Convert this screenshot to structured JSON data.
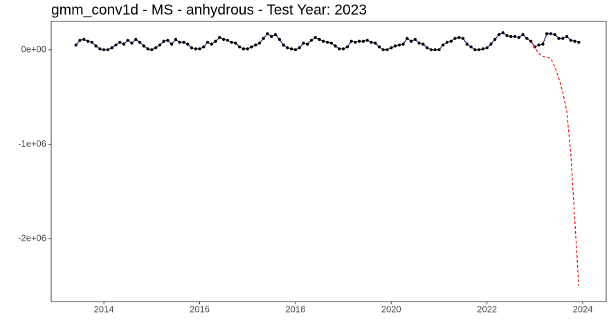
{
  "chart_data": {
    "type": "line",
    "title": "gmm_conv1d - MS - anhydrous - Test Year: 2023",
    "xlim": [
      2012.9,
      2024.49
    ],
    "ylim": [
      -2667000,
      300000
    ],
    "xticks": [
      2014,
      2016,
      2018,
      2020,
      2022,
      2024
    ],
    "yticks": [
      {
        "value": 0,
        "label": "0e+00"
      },
      {
        "value": -1000000,
        "label": "-1e+06"
      },
      {
        "value": -2000000,
        "label": "-2e+06"
      }
    ],
    "grid": false,
    "series": [
      {
        "color": "#1c1c7a",
        "marker_color": "#000000",
        "markers": true,
        "dashed": false,
        "x": [
          2013.417,
          2013.5,
          2013.583,
          2013.667,
          2013.75,
          2013.833,
          2013.917,
          2014,
          2014.083,
          2014.167,
          2014.25,
          2014.333,
          2014.417,
          2014.5,
          2014.583,
          2014.667,
          2014.75,
          2014.833,
          2014.917,
          2015,
          2015.083,
          2015.167,
          2015.25,
          2015.333,
          2015.417,
          2015.5,
          2015.583,
          2015.667,
          2015.75,
          2015.833,
          2015.917,
          2016,
          2016.083,
          2016.167,
          2016.25,
          2016.333,
          2016.417,
          2016.5,
          2016.583,
          2016.667,
          2016.75,
          2016.833,
          2016.917,
          2017,
          2017.083,
          2017.167,
          2017.25,
          2017.333,
          2017.417,
          2017.5,
          2017.583,
          2017.667,
          2017.75,
          2017.833,
          2017.917,
          2018,
          2018.083,
          2018.167,
          2018.25,
          2018.333,
          2018.417,
          2018.5,
          2018.583,
          2018.667,
          2018.75,
          2018.833,
          2018.917,
          2019,
          2019.083,
          2019.167,
          2019.25,
          2019.333,
          2019.417,
          2019.5,
          2019.583,
          2019.667,
          2019.75,
          2019.833,
          2019.917,
          2020,
          2020.083,
          2020.167,
          2020.25,
          2020.333,
          2020.417,
          2020.5,
          2020.583,
          2020.667,
          2020.75,
          2020.833,
          2020.917,
          2021,
          2021.083,
          2021.167,
          2021.25,
          2021.333,
          2021.417,
          2021.5,
          2021.583,
          2021.667,
          2021.75,
          2021.833,
          2021.917,
          2022,
          2022.083,
          2022.167,
          2022.25,
          2022.333,
          2022.417,
          2022.5,
          2022.583,
          2022.667,
          2022.75,
          2022.833,
          2022.917,
          2023,
          2023.083,
          2023.167,
          2023.25,
          2023.333,
          2023.417,
          2023.5,
          2023.583,
          2023.667,
          2023.75,
          2023.833,
          2023.917
        ],
        "values": [
          50000,
          100000,
          110000,
          90000,
          80000,
          40000,
          10000,
          0,
          0,
          20000,
          50000,
          80000,
          60000,
          100000,
          70000,
          110000,
          80000,
          40000,
          10000,
          0,
          20000,
          50000,
          90000,
          100000,
          60000,
          110000,
          80000,
          80000,
          60000,
          20000,
          10000,
          10000,
          30000,
          80000,
          60000,
          90000,
          130000,
          110000,
          100000,
          80000,
          70000,
          30000,
          10000,
          10000,
          30000,
          50000,
          70000,
          120000,
          170000,
          140000,
          160000,
          110000,
          50000,
          20000,
          10000,
          0,
          20000,
          70000,
          60000,
          100000,
          130000,
          110000,
          90000,
          80000,
          70000,
          40000,
          10000,
          10000,
          30000,
          90000,
          80000,
          90000,
          90000,
          100000,
          80000,
          70000,
          30000,
          0,
          0,
          20000,
          40000,
          50000,
          60000,
          120000,
          90000,
          110000,
          70000,
          60000,
          20000,
          0,
          0,
          0,
          50000,
          80000,
          90000,
          120000,
          130000,
          120000,
          60000,
          30000,
          0,
          0,
          10000,
          20000,
          60000,
          110000,
          160000,
          180000,
          150000,
          140000,
          140000,
          130000,
          160000,
          120000,
          90000,
          30000,
          50000,
          60000,
          170000,
          170000,
          160000,
          120000,
          120000,
          140000,
          100000,
          90000,
          80000
        ]
      },
      {
        "color": "#ff0000",
        "markers": false,
        "dashed": true,
        "x": [
          2022.917,
          2023,
          2023.083,
          2023.167,
          2023.25,
          2023.333,
          2023.417,
          2023.5,
          2023.583,
          2023.667,
          2023.75,
          2023.833,
          2023.917
        ],
        "values": [
          90000,
          20000,
          -40000,
          -70000,
          -80000,
          -90000,
          -180000,
          -300000,
          -450000,
          -650000,
          -1100000,
          -1800000,
          -2500000
        ]
      }
    ]
  }
}
